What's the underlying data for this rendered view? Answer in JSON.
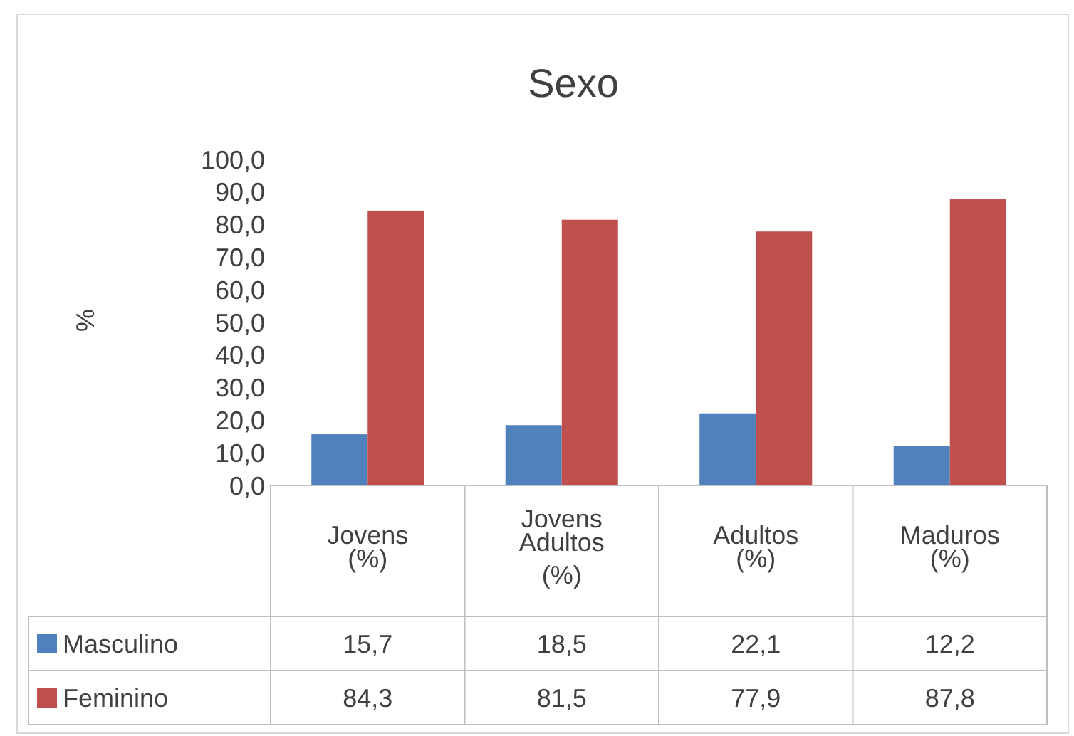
{
  "chart_data": {
    "type": "bar",
    "title": "Sexo",
    "ylabel": "%",
    "categories": [
      "Jovens (%)",
      "Jovens Adultos (%)",
      "Adultos (%)",
      "Maduros (%)"
    ],
    "series": [
      {
        "name": "Masculino",
        "color": "#4f81bd",
        "values": [
          15.7,
          18.5,
          22.1,
          12.2
        ],
        "value_labels": [
          "15,7",
          "18,5",
          "22,1",
          "12,2"
        ]
      },
      {
        "name": "Feminino",
        "color": "#c0504d",
        "values": [
          84.3,
          81.5,
          77.9,
          87.8
        ],
        "value_labels": [
          "84,3",
          "81,5",
          "77,9",
          "87,8"
        ]
      }
    ],
    "ylim": [
      0,
      100
    ],
    "yticks": [
      {
        "value": 0,
        "label": "0,0"
      },
      {
        "value": 10,
        "label": "10,0"
      },
      {
        "value": 20,
        "label": "20,0"
      },
      {
        "value": 30,
        "label": "30,0"
      },
      {
        "value": 40,
        "label": "40,0"
      },
      {
        "value": 50,
        "label": "50,0"
      },
      {
        "value": 60,
        "label": "60,0"
      },
      {
        "value": 70,
        "label": "70,0"
      },
      {
        "value": 80,
        "label": "80,0"
      },
      {
        "value": 90,
        "label": "90,0"
      },
      {
        "value": 100,
        "label": "100,0"
      }
    ],
    "legend": "bottom"
  }
}
